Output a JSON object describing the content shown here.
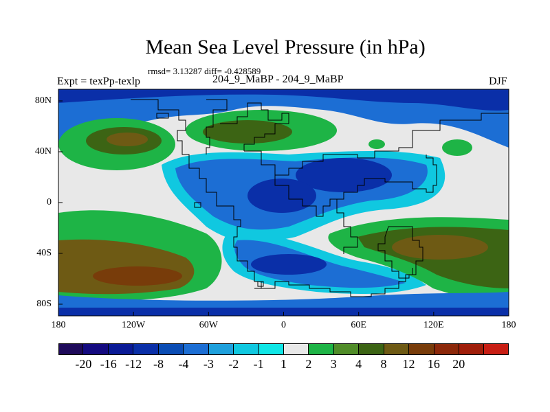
{
  "chart_data": {
    "type": "heatmap",
    "title": "Mean Sea Level Pressure (in hPa)",
    "stats": "rmsd= 3.13287 diff= -0.428589",
    "experiment": "Expt = texPp-texlp",
    "subtitle": "204_9_MaBP - 204_9_MaBP",
    "season": "DJF",
    "x_ticks": [
      "180",
      "120W",
      "60W",
      "0",
      "60E",
      "120E",
      "180"
    ],
    "y_ticks": [
      "80N",
      "40N",
      "0",
      "40S",
      "80S"
    ],
    "colorbar": {
      "labels": [
        "-20",
        "-16",
        "-12",
        "-8",
        "-4",
        "-3",
        "-2",
        "-1",
        "1",
        "2",
        "3",
        "4",
        "8",
        "12",
        "16",
        "20"
      ],
      "colors": [
        "#1e0a5a",
        "#140a80",
        "#0a1a96",
        "#0a2fa8",
        "#0a4cb4",
        "#1c6ed4",
        "#1ea0dc",
        "#10c8e0",
        "#10e6e6",
        "#e8e8e8",
        "#1eb446",
        "#508c28",
        "#3c6414",
        "#6e5a14",
        "#783c0a",
        "#8c280a",
        "#a01e0a",
        "#c81e14"
      ]
    },
    "color_levels": {
      "deep_low": "#0a2fa8",
      "mid_low": "#1c6ed4",
      "light_low": "#10c8e0",
      "near_zero": "#e8e8e8",
      "light_high": "#1eb446",
      "mid_high": "#3c6414",
      "high": "#6e5a14",
      "deep_high": "#783c0a"
    }
  }
}
